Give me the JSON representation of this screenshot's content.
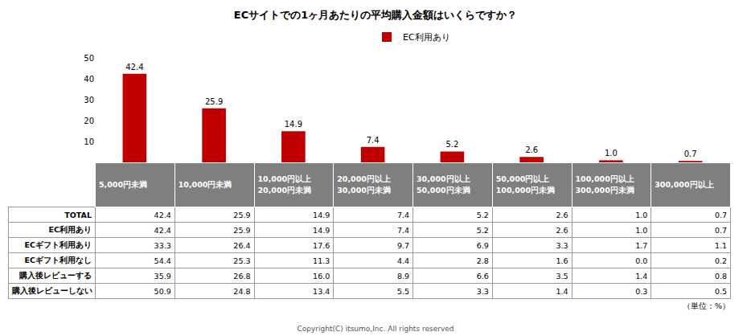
{
  "chart_data": {
    "type": "bar",
    "title": "ECサイトでの1ヶ月あたりの平均購入金額はいくらですか？",
    "categories": [
      "5,000円未満",
      "10,000円未満",
      "10,000円以上\n20,000円未満",
      "20,000円以上\n30,000円未満",
      "30,000円以上\n50,000円未満",
      "50,000円以上\n100,000円未満",
      "100,000円以上\n300,000円未満",
      "300,000円以上"
    ],
    "series": [
      {
        "name": "EC利用あり",
        "color": "#c00000",
        "values": [
          42.4,
          25.9,
          14.9,
          7.4,
          5.2,
          2.6,
          1.0,
          0.7
        ],
        "value_labels": [
          "42.4",
          "25.9",
          "14.9",
          "7.4",
          "5.2",
          "2.6",
          "1.0",
          "0.7"
        ]
      }
    ],
    "ylim": [
      0,
      50
    ],
    "yticks": [
      0,
      10,
      20,
      30,
      40,
      50
    ],
    "grid": false,
    "legend": "top",
    "data_labels": true,
    "tick_labels": "y"
  },
  "table": {
    "rows": [
      {
        "label": "TOTAL",
        "cells": [
          "42.4",
          "25.9",
          "14.9",
          "7.4",
          "5.2",
          "2.6",
          "1.0",
          "0.7"
        ]
      },
      {
        "label": "EC利用あり",
        "cells": [
          "42.4",
          "25.9",
          "14.9",
          "7.4",
          "5.2",
          "2.6",
          "1.0",
          "0.7"
        ]
      },
      {
        "label": "ECギフト利用あり",
        "cells": [
          "33.3",
          "26.4",
          "17.6",
          "9.7",
          "6.9",
          "3.3",
          "1.7",
          "1.1"
        ]
      },
      {
        "label": "ECギフト利用なし",
        "cells": [
          "54.4",
          "25.3",
          "11.3",
          "4.4",
          "2.8",
          "1.6",
          "0.0",
          "0.2"
        ]
      },
      {
        "label": "購入後レビューする",
        "cells": [
          "35.9",
          "26.8",
          "16.0",
          "8.9",
          "6.6",
          "3.5",
          "1.4",
          "0.8"
        ]
      },
      {
        "label": "購入後レビューしない",
        "cells": [
          "50.9",
          "24.8",
          "13.4",
          "5.5",
          "3.3",
          "1.4",
          "0.3",
          "0.5"
        ]
      }
    ]
  },
  "unit_note": "（単位：%）",
  "footer": "Copyright(C) itsumo,Inc. All rights reserved"
}
